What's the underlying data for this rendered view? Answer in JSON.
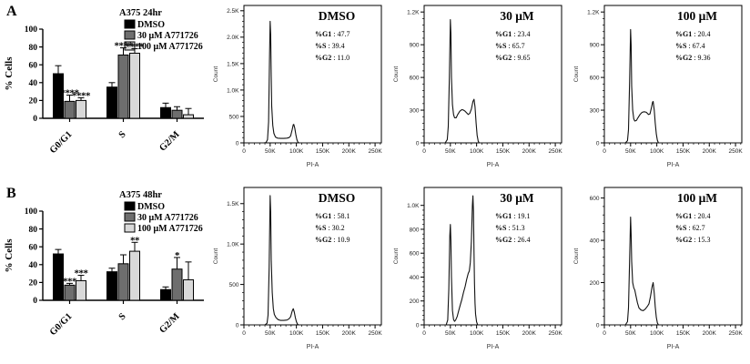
{
  "figure": {
    "background": "#ffffff",
    "panel_labels": [
      "A",
      "B"
    ],
    "accent_colors": {
      "bar_black": "#000000",
      "bar_gray": "#6e6e6e",
      "bar_lightgray": "#d9d9d9",
      "curve": "#111111"
    }
  },
  "chart_data": [
    {
      "type": "bar",
      "panel": "A",
      "title": "A375 24hr",
      "ylabel": "% Cells",
      "ylim": [
        0,
        100
      ],
      "yticks": [
        0,
        20,
        40,
        60,
        80,
        100
      ],
      "categories": [
        "G0/G1",
        "S",
        "G2/M"
      ],
      "series": [
        {
          "name": "DMSO",
          "color": "#000000",
          "values": [
            50,
            35,
            12
          ],
          "errors": [
            9,
            5,
            5
          ]
        },
        {
          "name": "30 μM A771726",
          "color": "#6e6e6e",
          "values": [
            19,
            71,
            9
          ],
          "errors": [
            7,
            8,
            4
          ]
        },
        {
          "name": "100 μM A771726",
          "color": "#d9d9d9",
          "values": [
            20,
            73,
            4
          ],
          "errors": [
            3,
            5,
            7
          ]
        }
      ],
      "significance": [
        {
          "category_index": 0,
          "series_index": 1,
          "stars": "****"
        },
        {
          "category_index": 0,
          "series_index": 2,
          "stars": "****"
        },
        {
          "category_index": 1,
          "series_index": 1,
          "stars": "****"
        },
        {
          "category_index": 1,
          "series_index": 2,
          "stars": "****"
        }
      ]
    },
    {
      "type": "line",
      "panel": "A",
      "title": "DMSO",
      "xlabel": "PI-A",
      "ylabel": "Count",
      "stats": [
        {
          "label": "%G1",
          "value": "47.7"
        },
        {
          "label": "%S",
          "value": "39.4"
        },
        {
          "label": "%G2",
          "value": "11.0"
        }
      ],
      "xlim_k": [
        0,
        262
      ],
      "xticks": [
        {
          "v": 0,
          "label": "0"
        },
        {
          "v": 50,
          "label": "50K"
        },
        {
          "v": 100,
          "label": "100K"
        },
        {
          "v": 150,
          "label": "150K"
        },
        {
          "v": 200,
          "label": "200K"
        },
        {
          "v": 250,
          "label": "250K"
        }
      ],
      "ylim": [
        0,
        2600
      ],
      "yticks": [
        {
          "v": 0,
          "label": "0"
        },
        {
          "v": 500,
          "label": "500"
        },
        {
          "v": 1000,
          "label": "1.0K"
        },
        {
          "v": 1500,
          "label": "1.5K"
        },
        {
          "v": 2000,
          "label": "2.0K"
        },
        {
          "v": 2500,
          "label": "2.5K"
        }
      ],
      "curve": [
        [
          0,
          0
        ],
        [
          38,
          0
        ],
        [
          42,
          5
        ],
        [
          45,
          60
        ],
        [
          47,
          400
        ],
        [
          49,
          1700
        ],
        [
          50,
          2300
        ],
        [
          51,
          2050
        ],
        [
          52,
          1250
        ],
        [
          53,
          700
        ],
        [
          55,
          330
        ],
        [
          57,
          180
        ],
        [
          60,
          110
        ],
        [
          64,
          90
        ],
        [
          70,
          85
        ],
        [
          76,
          85
        ],
        [
          82,
          90
        ],
        [
          86,
          100
        ],
        [
          89,
          130
        ],
        [
          92,
          250
        ],
        [
          94,
          345
        ],
        [
          95,
          350
        ],
        [
          97,
          275
        ],
        [
          99,
          150
        ],
        [
          101,
          60
        ],
        [
          103,
          10
        ],
        [
          105,
          0
        ],
        [
          260,
          0
        ]
      ]
    },
    {
      "type": "line",
      "panel": "A",
      "title": "30 μM",
      "xlabel": "PI-A",
      "ylabel": "Count",
      "stats": [
        {
          "label": "%G1",
          "value": "23.4"
        },
        {
          "label": "%S",
          "value": "65.7"
        },
        {
          "label": "%G2",
          "value": "9.65"
        }
      ],
      "xlim_k": [
        0,
        262
      ],
      "xticks": [
        {
          "v": 0,
          "label": "0"
        },
        {
          "v": 50,
          "label": "50K"
        },
        {
          "v": 100,
          "label": "100K"
        },
        {
          "v": 150,
          "label": "150K"
        },
        {
          "v": 200,
          "label": "200K"
        },
        {
          "v": 250,
          "label": "250K"
        }
      ],
      "ylim": [
        0,
        1260
      ],
      "yticks": [
        {
          "v": 0,
          "label": "0"
        },
        {
          "v": 300,
          "label": "300"
        },
        {
          "v": 600,
          "label": "600"
        },
        {
          "v": 900,
          "label": "900"
        },
        {
          "v": 1200,
          "label": "1.2K"
        }
      ],
      "curve": [
        [
          0,
          0
        ],
        [
          40,
          0
        ],
        [
          44,
          30
        ],
        [
          46,
          150
        ],
        [
          48,
          600
        ],
        [
          50,
          1130
        ],
        [
          51,
          1000
        ],
        [
          52,
          600
        ],
        [
          54,
          350
        ],
        [
          56,
          260
        ],
        [
          58,
          230
        ],
        [
          61,
          230
        ],
        [
          64,
          260
        ],
        [
          68,
          290
        ],
        [
          72,
          305
        ],
        [
          75,
          300
        ],
        [
          78,
          290
        ],
        [
          81,
          275
        ],
        [
          84,
          260
        ],
        [
          87,
          270
        ],
        [
          90,
          310
        ],
        [
          93,
          380
        ],
        [
          95,
          400
        ],
        [
          97,
          330
        ],
        [
          99,
          180
        ],
        [
          101,
          70
        ],
        [
          103,
          15
        ],
        [
          105,
          0
        ],
        [
          260,
          0
        ]
      ]
    },
    {
      "type": "line",
      "panel": "A",
      "title": "100 μM",
      "xlabel": "PI-A",
      "ylabel": "Count",
      "stats": [
        {
          "label": "%G1",
          "value": "20.4"
        },
        {
          "label": "%S",
          "value": "67.4"
        },
        {
          "label": "%G2",
          "value": "9.36"
        }
      ],
      "xlim_k": [
        0,
        262
      ],
      "xticks": [
        {
          "v": 0,
          "label": "0"
        },
        {
          "v": 50,
          "label": "50K"
        },
        {
          "v": 100,
          "label": "100K"
        },
        {
          "v": 150,
          "label": "150K"
        },
        {
          "v": 200,
          "label": "200K"
        },
        {
          "v": 250,
          "label": "250K"
        }
      ],
      "ylim": [
        0,
        1260
      ],
      "yticks": [
        {
          "v": 0,
          "label": "0"
        },
        {
          "v": 300,
          "label": "300"
        },
        {
          "v": 600,
          "label": "600"
        },
        {
          "v": 900,
          "label": "900"
        },
        {
          "v": 1200,
          "label": "1.2K"
        }
      ],
      "curve": [
        [
          0,
          0
        ],
        [
          40,
          0
        ],
        [
          44,
          20
        ],
        [
          46,
          120
        ],
        [
          48,
          550
        ],
        [
          50,
          1040
        ],
        [
          51,
          900
        ],
        [
          52,
          520
        ],
        [
          54,
          300
        ],
        [
          56,
          220
        ],
        [
          58,
          200
        ],
        [
          61,
          205
        ],
        [
          64,
          230
        ],
        [
          68,
          260
        ],
        [
          72,
          280
        ],
        [
          76,
          285
        ],
        [
          80,
          280
        ],
        [
          84,
          260
        ],
        [
          87,
          265
        ],
        [
          90,
          330
        ],
        [
          92,
          375
        ],
        [
          93,
          380
        ],
        [
          95,
          300
        ],
        [
          97,
          180
        ],
        [
          99,
          80
        ],
        [
          101,
          25
        ],
        [
          103,
          0
        ],
        [
          260,
          0
        ]
      ]
    },
    {
      "type": "bar",
      "panel": "B",
      "title": "A375 48hr",
      "ylabel": "% Cells",
      "ylim": [
        0,
        100
      ],
      "yticks": [
        0,
        20,
        40,
        60,
        80,
        100
      ],
      "categories": [
        "G0/G1",
        "S",
        "G2/M"
      ],
      "series": [
        {
          "name": "DMSO",
          "color": "#000000",
          "values": [
            52,
            32,
            12
          ],
          "errors": [
            5,
            4,
            3
          ]
        },
        {
          "name": "30 μM A771726",
          "color": "#6e6e6e",
          "values": [
            17,
            41,
            35
          ],
          "errors": [
            2,
            10,
            13
          ]
        },
        {
          "name": "100 μM A771726",
          "color": "#d9d9d9",
          "values": [
            22,
            55,
            23
          ],
          "errors": [
            6,
            10,
            20
          ]
        }
      ],
      "significance": [
        {
          "category_index": 0,
          "series_index": 1,
          "stars": "***"
        },
        {
          "category_index": 0,
          "series_index": 2,
          "stars": "***"
        },
        {
          "category_index": 1,
          "series_index": 2,
          "stars": "**"
        },
        {
          "category_index": 2,
          "series_index": 1,
          "stars": "*"
        }
      ]
    },
    {
      "type": "line",
      "panel": "B",
      "title": "DMSO",
      "xlabel": "PI-A",
      "ylabel": "Count",
      "stats": [
        {
          "label": "%G1",
          "value": "58.1"
        },
        {
          "label": "%S",
          "value": "30.2"
        },
        {
          "label": "%G2",
          "value": "10.9"
        }
      ],
      "xlim_k": [
        0,
        262
      ],
      "xticks": [
        {
          "v": 0,
          "label": "0"
        },
        {
          "v": 50,
          "label": "50K"
        },
        {
          "v": 100,
          "label": "100K"
        },
        {
          "v": 150,
          "label": "150K"
        },
        {
          "v": 200,
          "label": "200K"
        },
        {
          "v": 250,
          "label": "250K"
        }
      ],
      "ylim": [
        0,
        1700
      ],
      "yticks": [
        {
          "v": 0,
          "label": "0"
        },
        {
          "v": 500,
          "label": "500"
        },
        {
          "v": 1000,
          "label": "1.0K"
        },
        {
          "v": 1500,
          "label": "1.5K"
        }
      ],
      "curve": [
        [
          0,
          0
        ],
        [
          40,
          0
        ],
        [
          44,
          20
        ],
        [
          46,
          120
        ],
        [
          48,
          700
        ],
        [
          50,
          1600
        ],
        [
          51,
          1400
        ],
        [
          52,
          800
        ],
        [
          54,
          400
        ],
        [
          56,
          200
        ],
        [
          58,
          130
        ],
        [
          61,
          90
        ],
        [
          65,
          65
        ],
        [
          70,
          55
        ],
        [
          76,
          55
        ],
        [
          82,
          60
        ],
        [
          86,
          75
        ],
        [
          89,
          100
        ],
        [
          92,
          170
        ],
        [
          94,
          200
        ],
        [
          96,
          160
        ],
        [
          98,
          90
        ],
        [
          100,
          40
        ],
        [
          102,
          10
        ],
        [
          104,
          0
        ],
        [
          260,
          0
        ]
      ]
    },
    {
      "type": "line",
      "panel": "B",
      "title": "30 μM",
      "xlabel": "PI-A",
      "ylabel": "Count",
      "stats": [
        {
          "label": "%G1",
          "value": "19.1"
        },
        {
          "label": "%S",
          "value": "51.3"
        },
        {
          "label": "%G2",
          "value": "26.4"
        }
      ],
      "xlim_k": [
        0,
        262
      ],
      "xticks": [
        {
          "v": 0,
          "label": "0"
        },
        {
          "v": 50,
          "label": "50K"
        },
        {
          "v": 100,
          "label": "100K"
        },
        {
          "v": 150,
          "label": "150K"
        },
        {
          "v": 200,
          "label": "200K"
        },
        {
          "v": 250,
          "label": "250K"
        }
      ],
      "ylim": [
        0,
        1150
      ],
      "yticks": [
        {
          "v": 0,
          "label": "0"
        },
        {
          "v": 200,
          "label": "200"
        },
        {
          "v": 400,
          "label": "400"
        },
        {
          "v": 600,
          "label": "600"
        },
        {
          "v": 800,
          "label": "800"
        },
        {
          "v": 1000,
          "label": "1.0K"
        }
      ],
      "curve": [
        [
          0,
          0
        ],
        [
          42,
          0
        ],
        [
          45,
          40
        ],
        [
          47,
          300
        ],
        [
          48,
          550
        ],
        [
          49,
          750
        ],
        [
          50,
          840
        ],
        [
          51,
          700
        ],
        [
          52,
          400
        ],
        [
          54,
          120
        ],
        [
          56,
          45
        ],
        [
          58,
          30
        ],
        [
          60,
          40
        ],
        [
          63,
          70
        ],
        [
          66,
          120
        ],
        [
          69,
          170
        ],
        [
          72,
          215
        ],
        [
          75,
          270
        ],
        [
          78,
          320
        ],
        [
          81,
          380
        ],
        [
          84,
          430
        ],
        [
          86,
          450
        ],
        [
          88,
          520
        ],
        [
          90,
          700
        ],
        [
          92,
          1000
        ],
        [
          93,
          1080
        ],
        [
          94,
          950
        ],
        [
          95,
          600
        ],
        [
          96,
          350
        ],
        [
          97,
          180
        ],
        [
          98,
          90
        ],
        [
          100,
          25
        ],
        [
          102,
          0
        ],
        [
          260,
          0
        ]
      ]
    },
    {
      "type": "line",
      "panel": "B",
      "title": "100 μM",
      "xlabel": "PI-A",
      "ylabel": "Count",
      "stats": [
        {
          "label": "%G1",
          "value": "20.4"
        },
        {
          "label": "%S",
          "value": "62.7"
        },
        {
          "label": "%G2",
          "value": "15.3"
        }
      ],
      "xlim_k": [
        0,
        262
      ],
      "xticks": [
        {
          "v": 0,
          "label": "0"
        },
        {
          "v": 50,
          "label": "50K"
        },
        {
          "v": 100,
          "label": "100K"
        },
        {
          "v": 150,
          "label": "150K"
        },
        {
          "v": 200,
          "label": "200K"
        },
        {
          "v": 250,
          "label": "250K"
        }
      ],
      "ylim": [
        0,
        650
      ],
      "yticks": [
        {
          "v": 0,
          "label": "0"
        },
        {
          "v": 200,
          "label": "200"
        },
        {
          "v": 400,
          "label": "400"
        },
        {
          "v": 600,
          "label": "600"
        }
      ],
      "curve": [
        [
          0,
          0
        ],
        [
          40,
          0
        ],
        [
          44,
          15
        ],
        [
          46,
          80
        ],
        [
          48,
          300
        ],
        [
          50,
          510
        ],
        [
          51,
          430
        ],
        [
          52,
          300
        ],
        [
          54,
          200
        ],
        [
          56,
          175
        ],
        [
          58,
          165
        ],
        [
          60,
          140
        ],
        [
          63,
          105
        ],
        [
          66,
          80
        ],
        [
          70,
          70
        ],
        [
          74,
          67
        ],
        [
          78,
          75
        ],
        [
          82,
          88
        ],
        [
          85,
          100
        ],
        [
          88,
          135
        ],
        [
          91,
          180
        ],
        [
          93,
          200
        ],
        [
          95,
          150
        ],
        [
          97,
          85
        ],
        [
          99,
          35
        ],
        [
          101,
          10
        ],
        [
          103,
          0
        ],
        [
          260,
          0
        ]
      ]
    }
  ]
}
